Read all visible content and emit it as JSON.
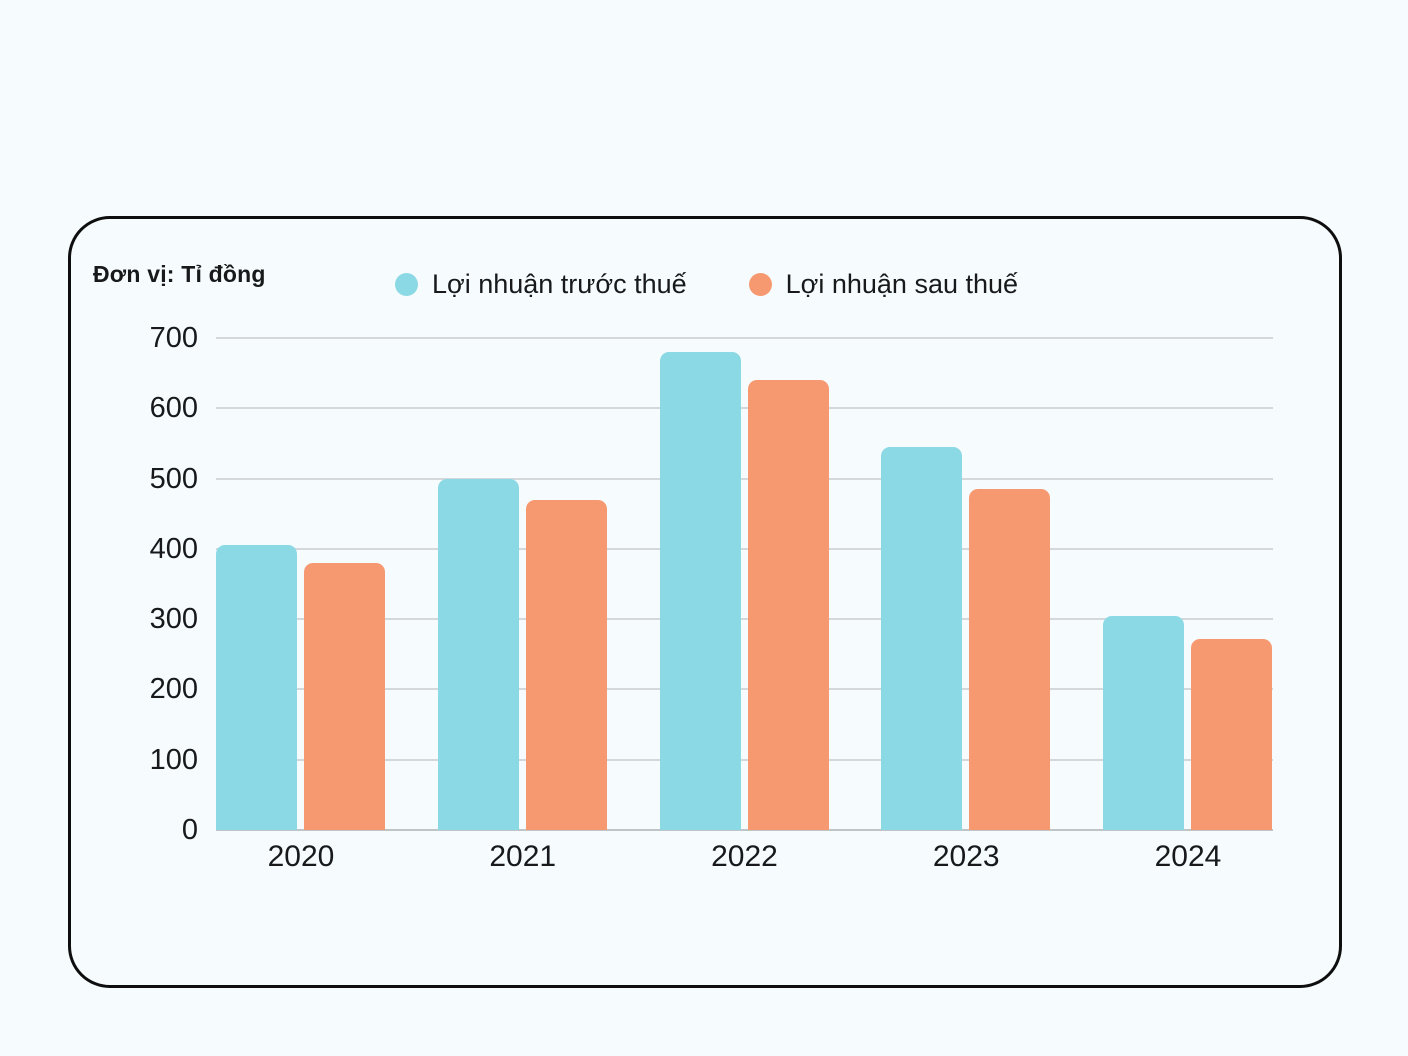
{
  "page": {
    "background_color": "#F6FBFD"
  },
  "card": {
    "background_color": "#F6FBFD",
    "border_color": "#0e0e0e"
  },
  "chart_data": {
    "type": "bar",
    "title": "",
    "unit_label": "Đơn vị: Tỉ đồng",
    "categories": [
      "2020",
      "2021",
      "2022",
      "2023",
      "2024"
    ],
    "series": [
      {
        "name": "Lợi nhuận trước thuế",
        "key": "before-tax",
        "color": "#8BD9E4",
        "values": [
          405,
          500,
          680,
          545,
          305
        ]
      },
      {
        "name": "Lợi nhuận sau thuế",
        "key": "after-tax",
        "color": "#F79970",
        "values": [
          380,
          470,
          640,
          485,
          272
        ]
      }
    ],
    "xlabel": "",
    "ylabel": "",
    "ylim": [
      0,
      700
    ],
    "yticks": [
      0,
      100,
      200,
      300,
      400,
      500,
      600,
      700
    ],
    "grid": "horizontal",
    "legend_position": "top",
    "gridline_color": "#d4d8da",
    "zero_line_color": "#bfc4c6",
    "text_color": "#17191a"
  }
}
